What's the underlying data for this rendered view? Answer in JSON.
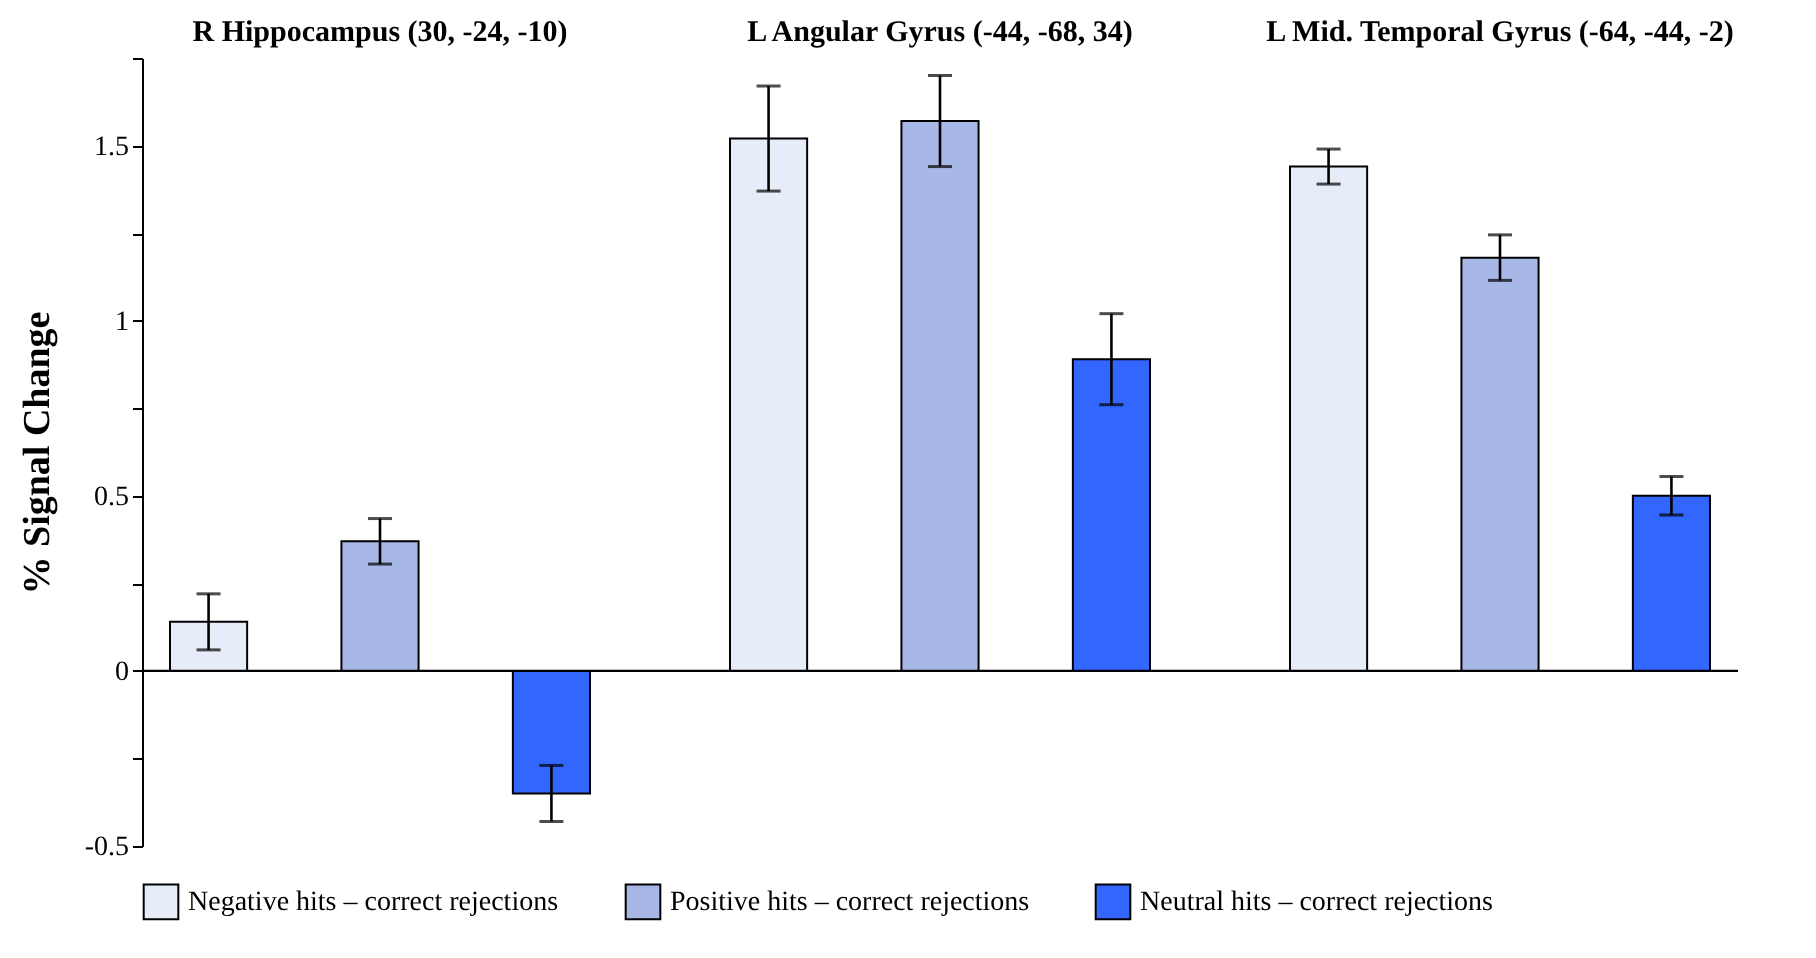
{
  "chart_data": {
    "type": "bar",
    "ylabel": "% Signal Change",
    "categories": [
      "R Hippocampus (30, -24, -10)",
      "L Angular Gyrus (-44, -68, 34)",
      "L Mid. Temporal Gyrus (-64, -44, -2)"
    ],
    "series": [
      {
        "name": "Negative hits – correct rejections",
        "color": "#e6ecf8",
        "values": [
          0.14,
          1.52,
          1.44
        ],
        "errors": [
          0.08,
          0.15,
          0.05
        ]
      },
      {
        "name": "Positive hits – correct rejections",
        "color": "#a8b8e6",
        "values": [
          0.37,
          1.57,
          1.18
        ],
        "errors": [
          0.065,
          0.13,
          0.065
        ]
      },
      {
        "name": "Neutral hits – correct rejections",
        "color": "#3366ff",
        "values": [
          -0.35,
          0.89,
          0.5
        ],
        "errors": [
          0.08,
          0.13,
          0.055
        ]
      }
    ],
    "ylim": [
      -0.5,
      1.75
    ],
    "yticks": [
      -0.5,
      {
        "value": -0.25,
        "label": null
      },
      0,
      {
        "value": 0.25,
        "label": null
      },
      0.5,
      {
        "value": 0.75,
        "label": null
      },
      1,
      {
        "value": 1.25,
        "label": null
      },
      1.5,
      {
        "value": 1.75,
        "label": null
      }
    ],
    "ref_lines": [
      {
        "axis": "y",
        "value": 0
      }
    ],
    "grid": false,
    "legend": "bottom"
  }
}
